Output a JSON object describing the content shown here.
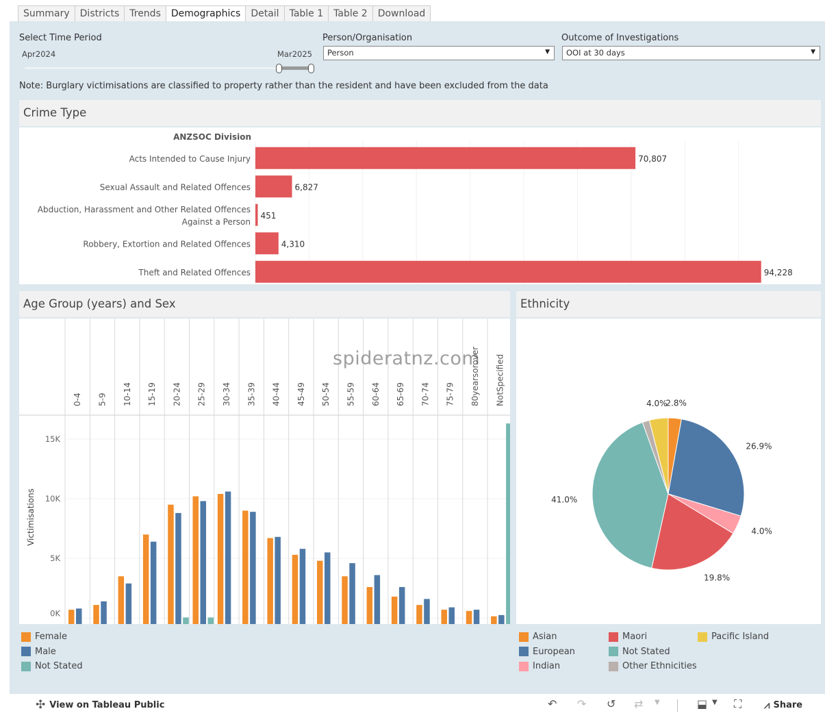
{
  "tabs": [
    "Summary",
    "Districts",
    "Trends",
    "Demographics",
    "Detail",
    "Table 1",
    "Table 2",
    "Download"
  ],
  "active_tab": "Demographics",
  "filters": {
    "time_label": "Select Time Period",
    "time_start": "Apr2024",
    "time_end": "Mar2025",
    "person_label": "Person/Organisation",
    "person_value": "Person",
    "outcome_label": "Outcome of Investigations",
    "outcome_value": "OOI at 30 days"
  },
  "note": "Note: Burglary victimisations are classified to property rather than the resident and have been excluded from the data",
  "watermark": "spideratnz.com",
  "colors": {
    "crime_bar": "#e1575a",
    "female": "#f28e2b",
    "male": "#4e79a7",
    "not_stated": "#76b7b2"
  },
  "chart_data": [
    {
      "type": "bar",
      "title": "Crime Type",
      "ylabel": "ANZSOC Division",
      "categories": [
        "Acts Intended to Cause Injury",
        "Sexual Assault and Related Offences",
        "Abduction, Harassment and Other Related Offences Against a Person",
        "Robbery, Extortion and Related Offences",
        "Theft and Related Offences"
      ],
      "category_lines": [
        [
          "Acts Intended to Cause Injury"
        ],
        [
          "Sexual Assault and Related Offences"
        ],
        [
          "Abduction, Harassment and Other Related Offences",
          "Against a Person"
        ],
        [
          "Robbery, Extortion and Related Offences"
        ],
        [
          "Theft and Related Offences"
        ]
      ],
      "values": [
        70807,
        6827,
        451,
        4310,
        94228
      ],
      "value_labels": [
        "70,807",
        "6,827",
        "451",
        "4,310",
        "94,228"
      ],
      "xlim": [
        0,
        100000
      ]
    },
    {
      "type": "bar",
      "title": "Age Group (years) and Sex",
      "ylabel": "Victimisations",
      "categories": [
        "0-4",
        "5-9",
        "10-14",
        "15-19",
        "20-24",
        "25-29",
        "30-34",
        "35-39",
        "40-44",
        "45-49",
        "50-54",
        "55-59",
        "60-64",
        "65-69",
        "70-74",
        "75-79",
        "80yearsorover",
        "NotSpecified"
      ],
      "series": [
        {
          "name": "Female",
          "values": [
            700,
            1100,
            3500,
            7000,
            9500,
            10200,
            10400,
            9000,
            6700,
            5300,
            4800,
            3500,
            2600,
            1800,
            1100,
            700,
            600,
            150
          ]
        },
        {
          "name": "Male",
          "values": [
            800,
            1400,
            2900,
            6400,
            8800,
            9800,
            10600,
            8900,
            6800,
            5800,
            5500,
            4600,
            3600,
            2600,
            1600,
            900,
            700,
            250
          ]
        },
        {
          "name": "Not Stated",
          "values": [
            0,
            0,
            0,
            0,
            50,
            50,
            0,
            0,
            0,
            0,
            0,
            0,
            0,
            0,
            0,
            0,
            0,
            16300
          ]
        }
      ],
      "yticks": [
        "0K",
        "5K",
        "10K",
        "15K"
      ],
      "ylim": [
        -500,
        17000
      ]
    },
    {
      "type": "pie",
      "title": "Ethnicity",
      "categories": [
        "Asian",
        "European",
        "Indian",
        "Maori",
        "Not Stated",
        "Other Ethnicities",
        "Pacific Island"
      ],
      "values": [
        2.8,
        26.9,
        4.0,
        19.8,
        41.0,
        1.5,
        4.0
      ],
      "labels": [
        "2.8%",
        "26.9%",
        "4.0%",
        "19.8%",
        "41.0%",
        "",
        "4.0%"
      ],
      "colors": [
        "#f28e2b",
        "#4e79a7",
        "#ff9da7",
        "#e15759",
        "#76b7b2",
        "#bab0ac",
        "#edc948"
      ]
    }
  ],
  "age_legend": [
    {
      "label": "Female",
      "color": "#f28e2b"
    },
    {
      "label": "Male",
      "color": "#4e79a7"
    },
    {
      "label": "Not Stated",
      "color": "#76b7b2"
    }
  ],
  "eth_legend": [
    {
      "label": "Asian",
      "color": "#f28e2b"
    },
    {
      "label": "European",
      "color": "#4e79a7"
    },
    {
      "label": "Indian",
      "color": "#ff9da7"
    },
    {
      "label": "Maori",
      "color": "#e15759"
    },
    {
      "label": "Not Stated",
      "color": "#76b7b2"
    },
    {
      "label": "Other Ethnicities",
      "color": "#bab0ac"
    },
    {
      "label": "Pacific Island",
      "color": "#edc948"
    }
  ],
  "footer": {
    "view_label": "View on Tableau Public",
    "share_label": "Share"
  }
}
